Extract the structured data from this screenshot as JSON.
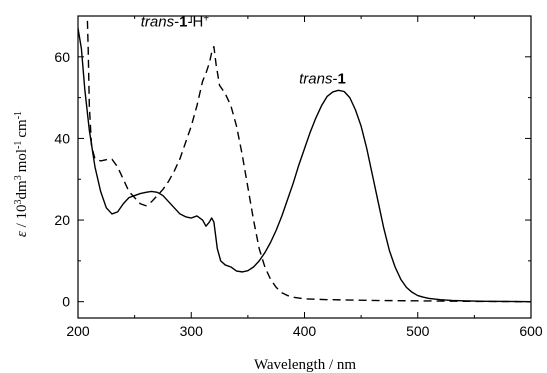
{
  "chart_data": {
    "type": "line",
    "title": "",
    "xlabel": "Wavelength / nm",
    "ylabel": {
      "symbol": "ε",
      "sep": " / 10",
      "exp1": "3",
      "unit1": "dm",
      "exp2": "3",
      "unit2": "mol",
      "exp3": "-1",
      "unit3": "cm",
      "exp4": "-1"
    },
    "xlim": [
      200,
      600
    ],
    "ylim": [
      -4,
      70
    ],
    "x_ticks": [
      200,
      300,
      400,
      500,
      600
    ],
    "y_ticks": [
      0,
      20,
      40,
      60
    ],
    "grid": false,
    "annotations": [
      {
        "id": "trans1H",
        "italic": "trans",
        "dash": "-",
        "bold": "1",
        "rest": "-H",
        "sup": "+",
        "at": [
          319,
          62
        ]
      },
      {
        "id": "trans1",
        "italic": "trans",
        "dash": "-",
        "bold": "1",
        "rest": "",
        "sup": "",
        "at": [
          420,
          51
        ]
      }
    ],
    "series": [
      {
        "id": "trans-1",
        "style": "solid",
        "color": "#000000",
        "x": [
          200,
          203,
          206,
          210,
          215,
          220,
          225,
          230,
          235,
          240,
          245,
          250,
          255,
          260,
          265,
          270,
          275,
          280,
          285,
          290,
          295,
          300,
          305,
          310,
          313,
          316,
          318,
          320,
          323,
          326,
          330,
          335,
          340,
          345,
          350,
          355,
          360,
          365,
          370,
          375,
          380,
          385,
          390,
          395,
          400,
          405,
          410,
          415,
          420,
          425,
          430,
          435,
          440,
          445,
          450,
          455,
          460,
          465,
          470,
          475,
          480,
          485,
          490,
          495,
          500,
          505,
          510,
          520,
          530,
          540,
          560,
          580,
          600
        ],
        "y": [
          67,
          62,
          52,
          42,
          33,
          27,
          23,
          21.5,
          22,
          24,
          25.5,
          26,
          26.5,
          26.8,
          27,
          26.8,
          26,
          24.5,
          23,
          21.5,
          20.8,
          20.5,
          21,
          20,
          18.5,
          19.5,
          20.5,
          19.5,
          13,
          10,
          9,
          8.5,
          7.5,
          7.3,
          7.6,
          8.5,
          10,
          12,
          14.5,
          17.5,
          21,
          25,
          29,
          33.5,
          37.5,
          41.5,
          45,
          48,
          50.3,
          51.4,
          51.8,
          51.5,
          50,
          47,
          43,
          37.5,
          31,
          24.5,
          18,
          12.5,
          8.5,
          5.5,
          3.5,
          2.3,
          1.5,
          1.1,
          0.8,
          0.5,
          0.3,
          0.2,
          0.1,
          0.05,
          0
        ]
      },
      {
        "id": "trans-1-H+",
        "style": "dashed",
        "color": "#000000",
        "x": [
          208,
          209,
          210,
          212,
          215,
          220,
          225,
          230,
          235,
          240,
          245,
          250,
          255,
          260,
          265,
          270,
          275,
          280,
          285,
          290,
          295,
          300,
          305,
          310,
          313,
          316,
          318,
          320,
          322,
          325,
          330,
          335,
          340,
          345,
          350,
          355,
          360,
          365,
          370,
          375,
          380,
          385,
          390,
          400,
          420,
          440,
          460,
          480,
          500,
          520,
          540,
          560,
          580,
          600
        ],
        "y": [
          72,
          62,
          48,
          38,
          35,
          34.5,
          34.8,
          34.9,
          33,
          30,
          27,
          25.5,
          24,
          23.5,
          24.5,
          26,
          27.5,
          29.5,
          32,
          35,
          39,
          43,
          48,
          54,
          56,
          58.5,
          61,
          62.5,
          58,
          53,
          51,
          48,
          43,
          36,
          28,
          20,
          13,
          8.5,
          5.5,
          3.5,
          2.2,
          1.5,
          1.1,
          0.7,
          0.5,
          0.4,
          0.3,
          0.25,
          0.2,
          0.15,
          0.1,
          0.05,
          0.02,
          0
        ]
      }
    ]
  }
}
